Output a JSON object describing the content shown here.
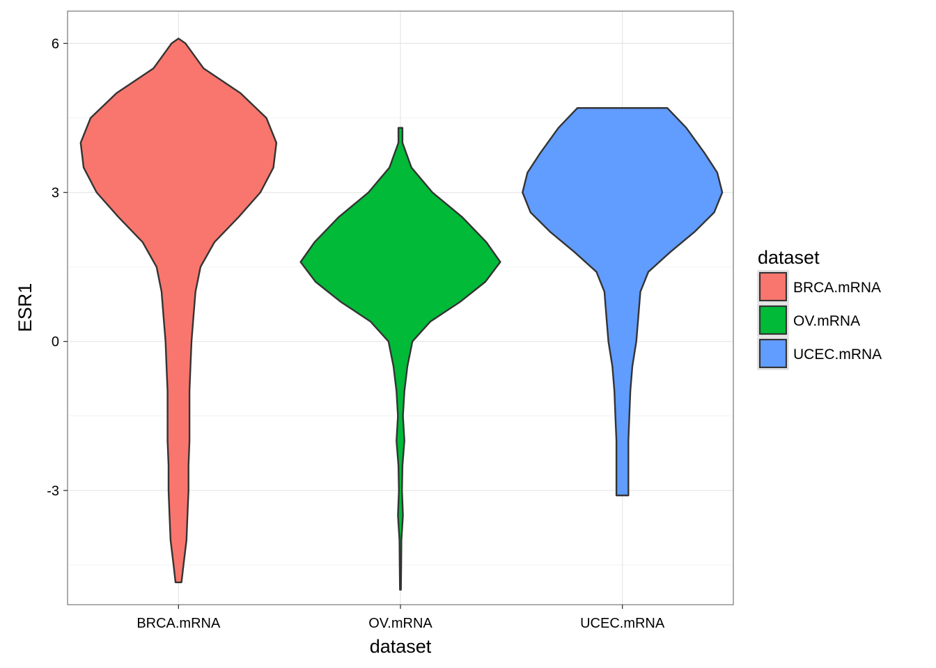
{
  "chart_data": {
    "type": "violin",
    "xlabel": "dataset",
    "ylabel": "ESR1",
    "categories": [
      "BRCA.mRNA",
      "OV.mRNA",
      "UCEC.mRNA"
    ],
    "ylim": [
      -5.3,
      6.65
    ],
    "yticks": [
      -3,
      0,
      3,
      6
    ],
    "ytick_labels": [
      "-3",
      "0",
      "3",
      "6"
    ],
    "grid": true,
    "legend": {
      "title": "dataset",
      "position": "right",
      "entries": [
        "BRCA.mRNA",
        "OV.mRNA",
        "UCEC.mRNA"
      ]
    },
    "colors": {
      "BRCA.mRNA": "#F8766D",
      "OV.mRNA": "#00BA38",
      "UCEC.mRNA": "#619CFF"
    },
    "series": [
      {
        "name": "BRCA.mRNA",
        "min": -4.85,
        "max": 6.1,
        "median_mode": 4.0,
        "density_profile": [
          [
            6.1,
            0.0
          ],
          [
            6.0,
            0.07
          ],
          [
            5.5,
            0.25
          ],
          [
            5.0,
            0.62
          ],
          [
            4.5,
            0.88
          ],
          [
            4.0,
            0.98
          ],
          [
            3.5,
            0.95
          ],
          [
            3.0,
            0.82
          ],
          [
            2.5,
            0.6
          ],
          [
            2.0,
            0.36
          ],
          [
            1.5,
            0.22
          ],
          [
            1.0,
            0.17
          ],
          [
            0.5,
            0.15
          ],
          [
            0.0,
            0.13
          ],
          [
            -0.5,
            0.12
          ],
          [
            -1.0,
            0.11
          ],
          [
            -1.5,
            0.11
          ],
          [
            -2.0,
            0.11
          ],
          [
            -2.5,
            0.1
          ],
          [
            -3.0,
            0.1
          ],
          [
            -3.5,
            0.09
          ],
          [
            -4.0,
            0.08
          ],
          [
            -4.5,
            0.05
          ],
          [
            -4.85,
            0.03
          ]
        ]
      },
      {
        "name": "OV.mRNA",
        "min": -5.0,
        "max": 4.3,
        "median_mode": 1.6,
        "density_profile": [
          [
            4.3,
            0.02
          ],
          [
            4.0,
            0.02
          ],
          [
            3.5,
            0.11
          ],
          [
            3.0,
            0.32
          ],
          [
            2.5,
            0.62
          ],
          [
            2.0,
            0.86
          ],
          [
            1.6,
            1.0
          ],
          [
            1.2,
            0.85
          ],
          [
            0.8,
            0.6
          ],
          [
            0.4,
            0.3
          ],
          [
            0.0,
            0.12
          ],
          [
            -0.5,
            0.07
          ],
          [
            -1.0,
            0.04
          ],
          [
            -1.5,
            0.025
          ],
          [
            -2.0,
            0.04
          ],
          [
            -2.5,
            0.02
          ],
          [
            -3.0,
            0.015
          ],
          [
            -3.5,
            0.025
          ],
          [
            -4.0,
            0.01
          ],
          [
            -4.5,
            0.008
          ],
          [
            -5.0,
            0.005
          ]
        ]
      },
      {
        "name": "UCEC.mRNA",
        "min": -3.1,
        "max": 4.7,
        "median_mode": 3.0,
        "density_profile": [
          [
            4.7,
            0.45
          ],
          [
            4.3,
            0.64
          ],
          [
            3.8,
            0.82
          ],
          [
            3.4,
            0.95
          ],
          [
            3.0,
            1.0
          ],
          [
            2.6,
            0.92
          ],
          [
            2.2,
            0.72
          ],
          [
            1.8,
            0.48
          ],
          [
            1.4,
            0.26
          ],
          [
            1.0,
            0.18
          ],
          [
            0.5,
            0.16
          ],
          [
            0.0,
            0.14
          ],
          [
            -0.5,
            0.1
          ],
          [
            -1.0,
            0.08
          ],
          [
            -1.5,
            0.07
          ],
          [
            -2.0,
            0.06
          ],
          [
            -2.5,
            0.06
          ],
          [
            -3.1,
            0.06
          ]
        ]
      }
    ]
  }
}
